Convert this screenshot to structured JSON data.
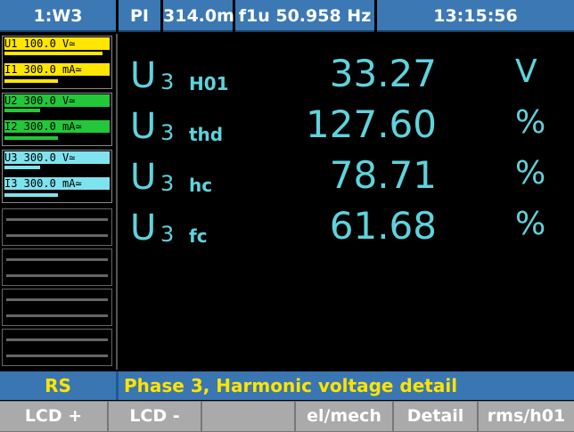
{
  "header": {
    "cells": [
      "1:W3",
      "PI",
      "314.0ms",
      "f1u  50.958 Hz",
      "13:15:56"
    ]
  },
  "channels": [
    {
      "voltage": "U1   100.0 V≃",
      "current": "I1 300.0 mA≃"
    },
    {
      "voltage": "U2   300.0 V≃",
      "current": "I2 300.0 mA≃"
    },
    {
      "voltage": "U3   300.0 V≃",
      "current": "I3 300.0 mA≃"
    }
  ],
  "measurements": [
    {
      "symbol": "U",
      "index": "3",
      "label": "H01",
      "value": "33.27",
      "unit": "V"
    },
    {
      "symbol": "U",
      "index": "3",
      "label": "thd",
      "value": "127.60",
      "unit": "%"
    },
    {
      "symbol": "U",
      "index": "3",
      "label": "hc",
      "value": "78.71",
      "unit": "%"
    },
    {
      "symbol": "U",
      "index": "3",
      "label": "fc",
      "value": "61.68",
      "unit": "%"
    }
  ],
  "status": {
    "mode": "RS",
    "message": "Phase 3, Harmonic voltage detail"
  },
  "softkeys": [
    "LCD +",
    "LCD -",
    "el/mech",
    "Detail",
    "rms/h01"
  ]
}
